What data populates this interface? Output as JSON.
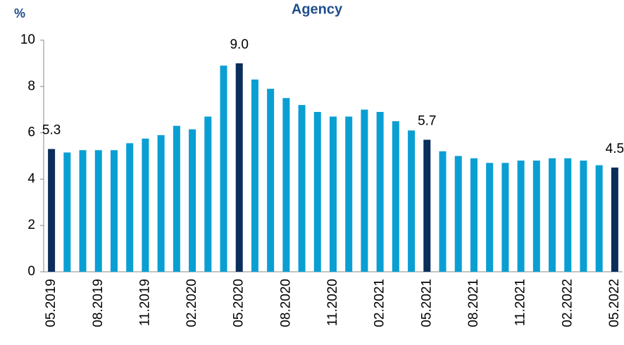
{
  "chart_data": {
    "type": "bar",
    "title": "Agency",
    "y_label": "%",
    "categories": [
      "05.2019",
      null,
      null,
      "08.2019",
      null,
      null,
      "11.2019",
      null,
      null,
      "02.2020",
      null,
      null,
      "05.2020",
      null,
      null,
      "08.2020",
      null,
      null,
      "11.2020",
      null,
      null,
      "02.2021",
      null,
      null,
      "05.2021",
      null,
      null,
      "08.2021",
      null,
      null,
      "11.2021",
      null,
      null,
      "02.2022",
      null,
      null,
      "05.2022"
    ],
    "values": [
      5.3,
      5.15,
      5.25,
      5.25,
      5.25,
      5.55,
      5.75,
      5.9,
      6.3,
      6.15,
      6.7,
      8.9,
      9.0,
      8.3,
      7.9,
      7.5,
      7.2,
      6.9,
      6.7,
      6.7,
      7.0,
      6.9,
      6.5,
      6.1,
      5.7,
      5.2,
      5.0,
      4.9,
      4.7,
      4.7,
      4.8,
      4.8,
      4.9,
      4.9,
      4.8,
      4.6,
      4.5
    ],
    "value_labels": [
      "5.3",
      null,
      null,
      null,
      null,
      null,
      null,
      null,
      null,
      null,
      null,
      null,
      "9.0",
      null,
      null,
      null,
      null,
      null,
      null,
      null,
      null,
      null,
      null,
      null,
      "5.7",
      null,
      null,
      null,
      null,
      null,
      null,
      null,
      null,
      null,
      null,
      null,
      "4.5"
    ],
    "colors": [
      "#0b2d5b",
      "#0a9fd3",
      "#0a9fd3",
      "#0a9fd3",
      "#0a9fd3",
      "#0a9fd3",
      "#0a9fd3",
      "#0a9fd3",
      "#0a9fd3",
      "#0a9fd3",
      "#0a9fd3",
      "#0a9fd3",
      "#0b2d5b",
      "#0a9fd3",
      "#0a9fd3",
      "#0a9fd3",
      "#0a9fd3",
      "#0a9fd3",
      "#0a9fd3",
      "#0a9fd3",
      "#0a9fd3",
      "#0a9fd3",
      "#0a9fd3",
      "#0a9fd3",
      "#0b2d5b",
      "#0a9fd3",
      "#0a9fd3",
      "#0a9fd3",
      "#0a9fd3",
      "#0a9fd3",
      "#0a9fd3",
      "#0a9fd3",
      "#0a9fd3",
      "#0a9fd3",
      "#0a9fd3",
      "#0a9fd3",
      "#0b2d5b"
    ],
    "ylim": [
      0,
      10
    ],
    "yticks": [
      0,
      2,
      4,
      6,
      8,
      10
    ],
    "grid": false
  }
}
